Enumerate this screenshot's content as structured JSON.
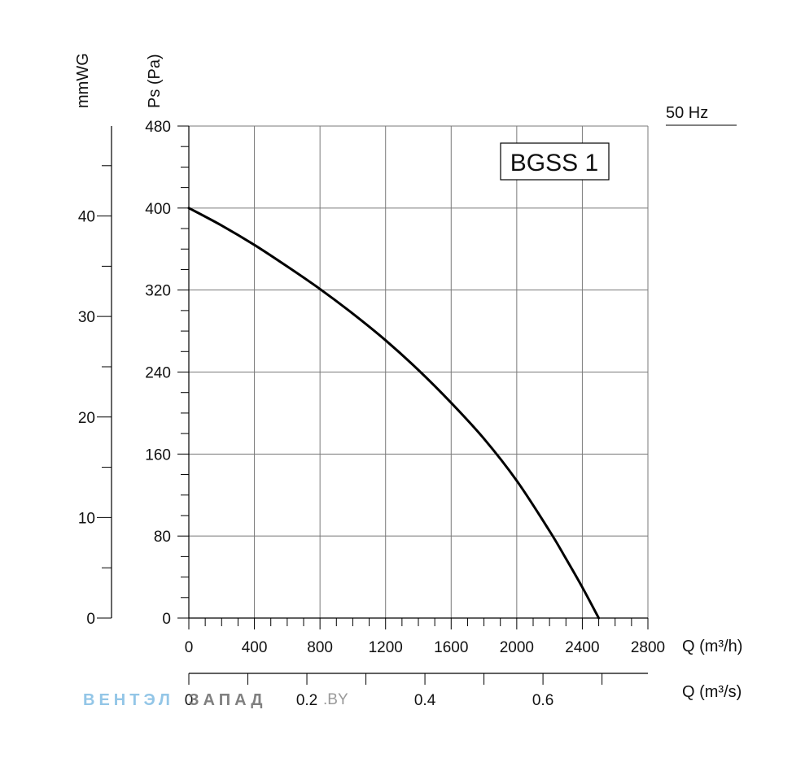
{
  "chart_data": {
    "type": "line",
    "model_label": "BGSS 1",
    "frequency_label": "50 Hz",
    "xlabel": "Q (m³/h)",
    "x2label": "Q (m³/s)",
    "ylabel": "Ps (Pa)",
    "y2label": "mmWG",
    "xlim": [
      0,
      2800
    ],
    "ylim": [
      0,
      480
    ],
    "x_ticks": [
      0,
      400,
      800,
      1200,
      1600,
      2000,
      2400,
      2800
    ],
    "x_tick_labels": [
      "0",
      "400",
      "800",
      "1200",
      "1600",
      "2000",
      "2400",
      "2800"
    ],
    "y_ticks": [
      0,
      80,
      160,
      240,
      320,
      400,
      480
    ],
    "y_tick_labels": [
      "0",
      "80",
      "160",
      "240",
      "320",
      "400",
      "480"
    ],
    "y2_ticks": [
      0,
      10,
      20,
      30,
      40
    ],
    "y2_tick_labels": [
      "0",
      "10",
      "20",
      "30",
      "40"
    ],
    "x2_ticks": [
      0,
      0.2,
      0.4,
      0.6
    ],
    "x2_tick_labels": [
      "0",
      "0.2",
      "0.4",
      "0.6"
    ],
    "grid": true,
    "series": [
      {
        "x": [
          0,
          200,
          400,
          600,
          800,
          1000,
          1200,
          1400,
          1600,
          1800,
          2000,
          2200,
          2300,
          2400,
          2500
        ],
        "y": [
          400,
          383,
          364,
          343,
          321,
          297,
          271,
          242,
          210,
          175,
          134,
          85,
          58,
          30,
          0
        ]
      }
    ],
    "color": "#000000"
  },
  "watermark": {
    "brand_part1": "ВЕНТЭЛ",
    "brand_part2": "ЗАПАД",
    "url": ".BY",
    "color1": "#8ec3e6",
    "color2": "#7a7a7a"
  }
}
